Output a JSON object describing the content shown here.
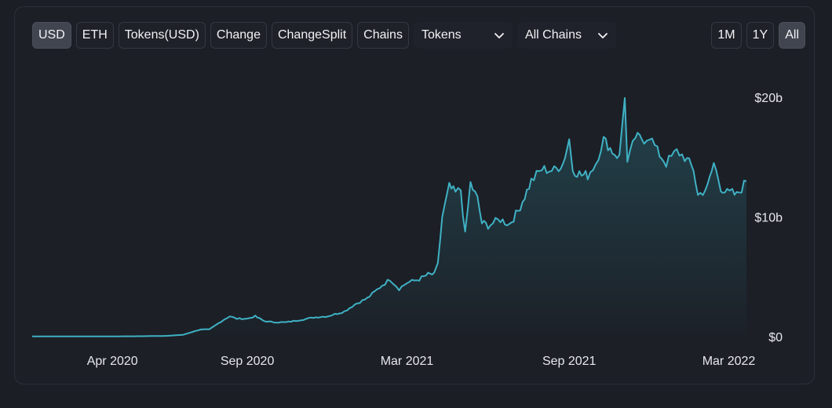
{
  "toolbar": {
    "buttons": [
      {
        "id": "usd",
        "label": "USD",
        "active": true
      },
      {
        "id": "eth",
        "label": "ETH",
        "active": false
      },
      {
        "id": "tokens-usd",
        "label": "Tokens(USD)",
        "active": false
      },
      {
        "id": "change",
        "label": "Change",
        "active": false
      },
      {
        "id": "change-split",
        "label": "ChangeSplit",
        "active": false
      },
      {
        "id": "chains",
        "label": "Chains",
        "active": false
      }
    ],
    "tokens_select": {
      "value": "Tokens",
      "icon": "chevron-down-icon"
    },
    "chains_select": {
      "value": "All Chains",
      "icon": "chevron-down-icon"
    }
  },
  "range": {
    "buttons": [
      {
        "id": "1m",
        "label": "1M",
        "active": false
      },
      {
        "id": "1y",
        "label": "1Y",
        "active": false
      },
      {
        "id": "all",
        "label": "All",
        "active": true
      }
    ]
  },
  "colors": {
    "line": "#3fb1c4",
    "fill_top": "#2a6f7c",
    "background": "#1c1f26",
    "active_button": "#41454f"
  },
  "chart_data": {
    "type": "area",
    "title": "",
    "xlabel": "",
    "ylabel": "",
    "x_ticks": [
      "Apr 2020",
      "Sep 2020",
      "Mar 2021",
      "Sep 2021",
      "Mar 2022"
    ],
    "y_ticks": [
      "$0",
      "$10b",
      "$20b"
    ],
    "y_tick_values": [
      0,
      10,
      20
    ],
    "y_unit": "billion USD",
    "ylim": [
      0,
      21
    ],
    "xlim": [
      "2020-01-01",
      "2022-03-21"
    ],
    "grid": false,
    "legend": "none",
    "series": [
      {
        "values": [
          [
            "2020-01-01",
            0.02
          ],
          [
            "2020-02-01",
            0.02
          ],
          [
            "2020-03-01",
            0.02
          ],
          [
            "2020-04-01",
            0.02
          ],
          [
            "2020-05-01",
            0.03
          ],
          [
            "2020-06-01",
            0.06
          ],
          [
            "2020-06-20",
            0.15
          ],
          [
            "2020-07-01",
            0.4
          ],
          [
            "2020-07-10",
            0.6
          ],
          [
            "2020-07-20",
            0.6
          ],
          [
            "2020-07-28",
            1.0
          ],
          [
            "2020-08-05",
            1.4
          ],
          [
            "2020-08-12",
            1.7
          ],
          [
            "2020-08-20",
            1.5
          ],
          [
            "2020-09-01",
            1.5
          ],
          [
            "2020-09-10",
            1.7
          ],
          [
            "2020-09-20",
            1.3
          ],
          [
            "2020-10-01",
            1.2
          ],
          [
            "2020-10-15",
            1.2
          ],
          [
            "2020-11-01",
            1.4
          ],
          [
            "2020-11-15",
            1.6
          ],
          [
            "2020-12-01",
            1.7
          ],
          [
            "2020-12-20",
            2.1
          ],
          [
            "2021-01-01",
            2.7
          ],
          [
            "2021-01-15",
            3.2
          ],
          [
            "2021-02-01",
            4.3
          ],
          [
            "2021-02-10",
            4.8
          ],
          [
            "2021-02-20",
            4.0
          ],
          [
            "2021-03-01",
            4.5
          ],
          [
            "2021-03-15",
            4.8
          ],
          [
            "2021-03-25",
            5.2
          ],
          [
            "2021-04-01",
            5.2
          ],
          [
            "2021-04-05",
            6.0
          ],
          [
            "2021-04-10",
            10.0
          ],
          [
            "2021-04-18",
            12.5
          ],
          [
            "2021-04-25",
            12.0
          ],
          [
            "2021-05-01",
            12.3
          ],
          [
            "2021-05-06",
            8.5
          ],
          [
            "2021-05-12",
            12.8
          ],
          [
            "2021-05-20",
            11.5
          ],
          [
            "2021-05-25",
            9.5
          ],
          [
            "2021-06-01",
            9.3
          ],
          [
            "2021-06-15",
            9.8
          ],
          [
            "2021-06-25",
            9.4
          ],
          [
            "2021-07-05",
            10.5
          ],
          [
            "2021-07-20",
            13.0
          ],
          [
            "2021-08-01",
            14.0
          ],
          [
            "2021-08-15",
            13.9
          ],
          [
            "2021-08-25",
            14.5
          ],
          [
            "2021-09-01",
            16.5
          ],
          [
            "2021-09-05",
            14.0
          ],
          [
            "2021-09-15",
            13.5
          ],
          [
            "2021-09-22",
            13.5
          ],
          [
            "2021-10-01",
            14.5
          ],
          [
            "2021-10-10",
            16.5
          ],
          [
            "2021-10-20",
            15.5
          ],
          [
            "2021-10-28",
            15.0
          ],
          [
            "2021-11-03",
            20.2
          ],
          [
            "2021-11-06",
            14.5
          ],
          [
            "2021-11-15",
            16.7
          ],
          [
            "2021-11-25",
            16.5
          ],
          [
            "2021-12-01",
            16.8
          ],
          [
            "2021-12-10",
            15.5
          ],
          [
            "2021-12-20",
            14.5
          ],
          [
            "2022-01-01",
            15.5
          ],
          [
            "2022-01-10",
            15.0
          ],
          [
            "2022-01-20",
            14.0
          ],
          [
            "2022-01-25",
            11.8
          ],
          [
            "2022-02-05",
            12.5
          ],
          [
            "2022-02-12",
            14.5
          ],
          [
            "2022-02-20",
            12.5
          ],
          [
            "2022-02-27",
            12.0
          ],
          [
            "2022-03-05",
            12.0
          ],
          [
            "2022-03-10",
            11.8
          ],
          [
            "2022-03-21",
            13.0
          ]
        ]
      }
    ]
  }
}
